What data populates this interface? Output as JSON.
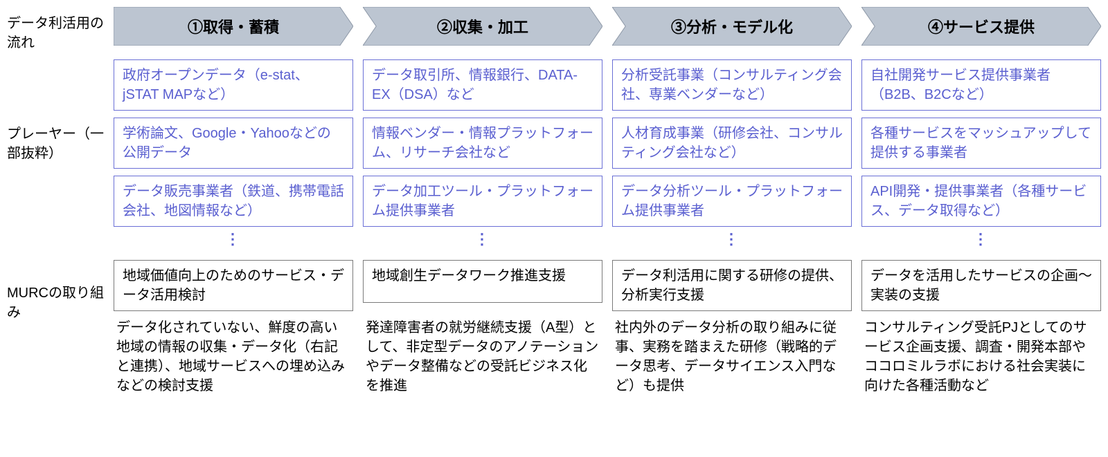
{
  "colors": {
    "chevron_fill": "#bcc5d1",
    "chevron_stroke": "#8c97a6",
    "player_border": "#6a6fd6",
    "player_text": "#5a5fd0",
    "murc_border": "#7a7a7a",
    "dots_color": "#5a5fd0"
  },
  "row_labels": {
    "flow": "データ利活用の流れ",
    "players": "プレーヤー（一部抜粋）",
    "murc": "MURCの取り組み"
  },
  "ellipsis": "⋮",
  "columns": [
    {
      "header": "①取得・蓄積",
      "players": [
        "政府オープンデータ（e-stat、jSTAT MAPなど）",
        "学術論文、Google・Yahooなどの公開データ",
        "データ販売事業者（鉄道、携帯電話会社、地図情報など）"
      ],
      "murc_box": "地域価値向上のためのサービス・データ活用検討",
      "murc_desc": "データ化されていない、鮮度の高い地域の情報の収集・データ化（右記と連携）、地域サービスへの埋め込みなどの検討支援"
    },
    {
      "header": "②収集・加工",
      "players": [
        "データ取引所、情報銀行、DATA-EX（DSA）など",
        "情報ベンダー・情報プラットフォーム、リサーチ会社など",
        "データ加工ツール・プラットフォーム提供事業者"
      ],
      "murc_box": "地域創生データワーク推進支援",
      "murc_desc": "発達障害者の就労継続支援（A型）として、非定型データのアノテーションやデータ整備などの受託ビジネス化を推進"
    },
    {
      "header": "③分析・モデル化",
      "players": [
        "分析受託事業（コンサルティング会社、専業ベンダーなど）",
        "人材育成事業（研修会社、コンサルティング会社など）",
        "データ分析ツール・プラットフォーム提供事業者"
      ],
      "murc_box": "データ利活用に関する研修の提供、分析実行支援",
      "murc_desc": "社内外のデータ分析の取り組みに従事、実務を踏まえた研修（戦略的データ思考、データサイエンス入門など）も提供"
    },
    {
      "header": "④サービス提供",
      "players": [
        "自社開発サービス提供事業者（B2B、B2Cなど）",
        "各種サービスをマッシュアップして提供する事業者",
        "API開発・提供事業者（各種サービス、データ取得など）"
      ],
      "murc_box": "データを活用したサービスの企画～実装の支援",
      "murc_desc": "コンサルティング受託PJとしてのサービス企画支援、調査・開発本部やココロミルラボにおける社会実装に向けた各種活動など"
    }
  ]
}
